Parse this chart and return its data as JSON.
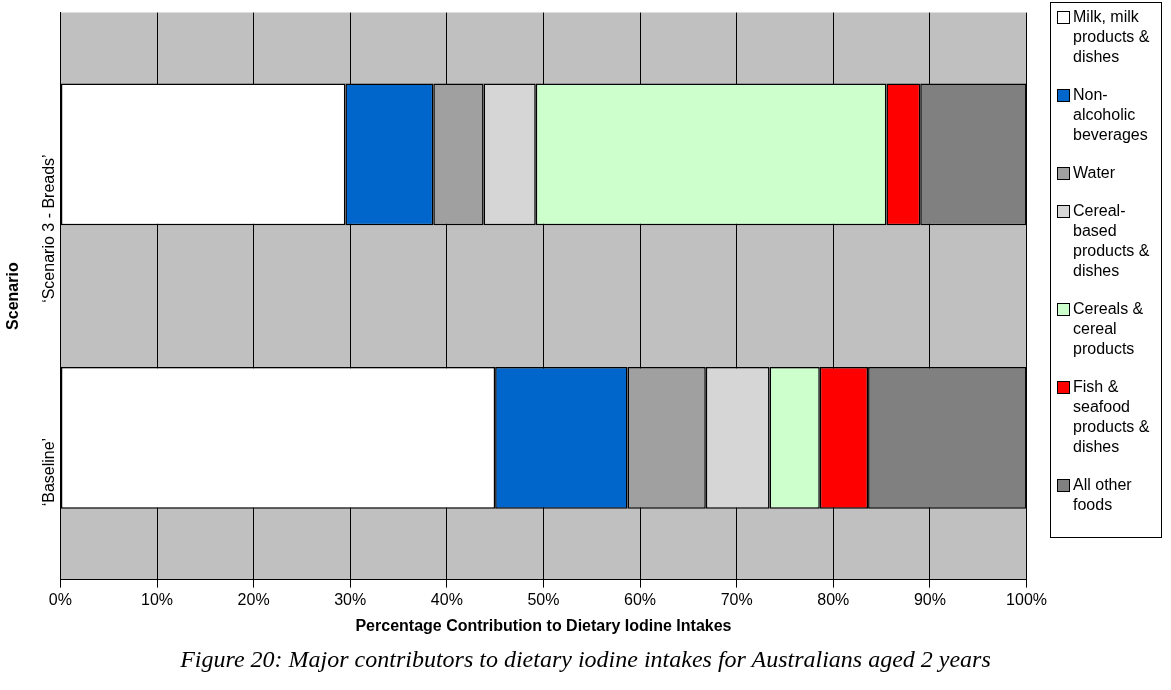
{
  "chart_data": {
    "type": "bar",
    "orientation": "horizontal",
    "stacked": true,
    "categories": [
      "‘Scenario 3 - Breads’",
      "‘Baseline’"
    ],
    "series": [
      {
        "name": "Milk, milk products & dishes",
        "color": "#ffffff",
        "values": [
          29.5,
          45.0
        ]
      },
      {
        "name": "Non-alcoholic beverages",
        "color": "#0066cc",
        "values": [
          9.1,
          13.7
        ]
      },
      {
        "name": "Water",
        "color": "#a0a0a0",
        "values": [
          5.2,
          8.1
        ]
      },
      {
        "name": "Cereal-based products & dishes",
        "color": "#d6d6d6",
        "values": [
          5.4,
          6.6
        ]
      },
      {
        "name": "Cereals & cereal products",
        "color": "#ccffcc",
        "values": [
          36.3,
          5.2
        ]
      },
      {
        "name": "Fish & seafood products & dishes",
        "color": "#ff0000",
        "values": [
          3.5,
          5.0
        ]
      },
      {
        "name": "All other foods",
        "color": "#808080",
        "values": [
          11.0,
          16.4
        ]
      }
    ],
    "xlim": [
      0,
      100
    ],
    "xticks": [
      {
        "value": 0,
        "label": "0%"
      },
      {
        "value": 10,
        "label": "10%"
      },
      {
        "value": 20,
        "label": "20%"
      },
      {
        "value": 30,
        "label": "30%"
      },
      {
        "value": 40,
        "label": "40%"
      },
      {
        "value": 50,
        "label": "50%"
      },
      {
        "value": 60,
        "label": "60%"
      },
      {
        "value": 70,
        "label": "70%"
      },
      {
        "value": 80,
        "label": "80%"
      },
      {
        "value": 90,
        "label": "90%"
      },
      {
        "value": 100,
        "label": "100%"
      }
    ],
    "xlabel": "Percentage Contribution to Dietary Iodine Intakes",
    "ylabel": "Scenario",
    "grid": "x",
    "legend": "right",
    "annotations": [
      "Figure 20: Major contributors to dietary iodine intakes for Australians aged 2 years"
    ]
  }
}
